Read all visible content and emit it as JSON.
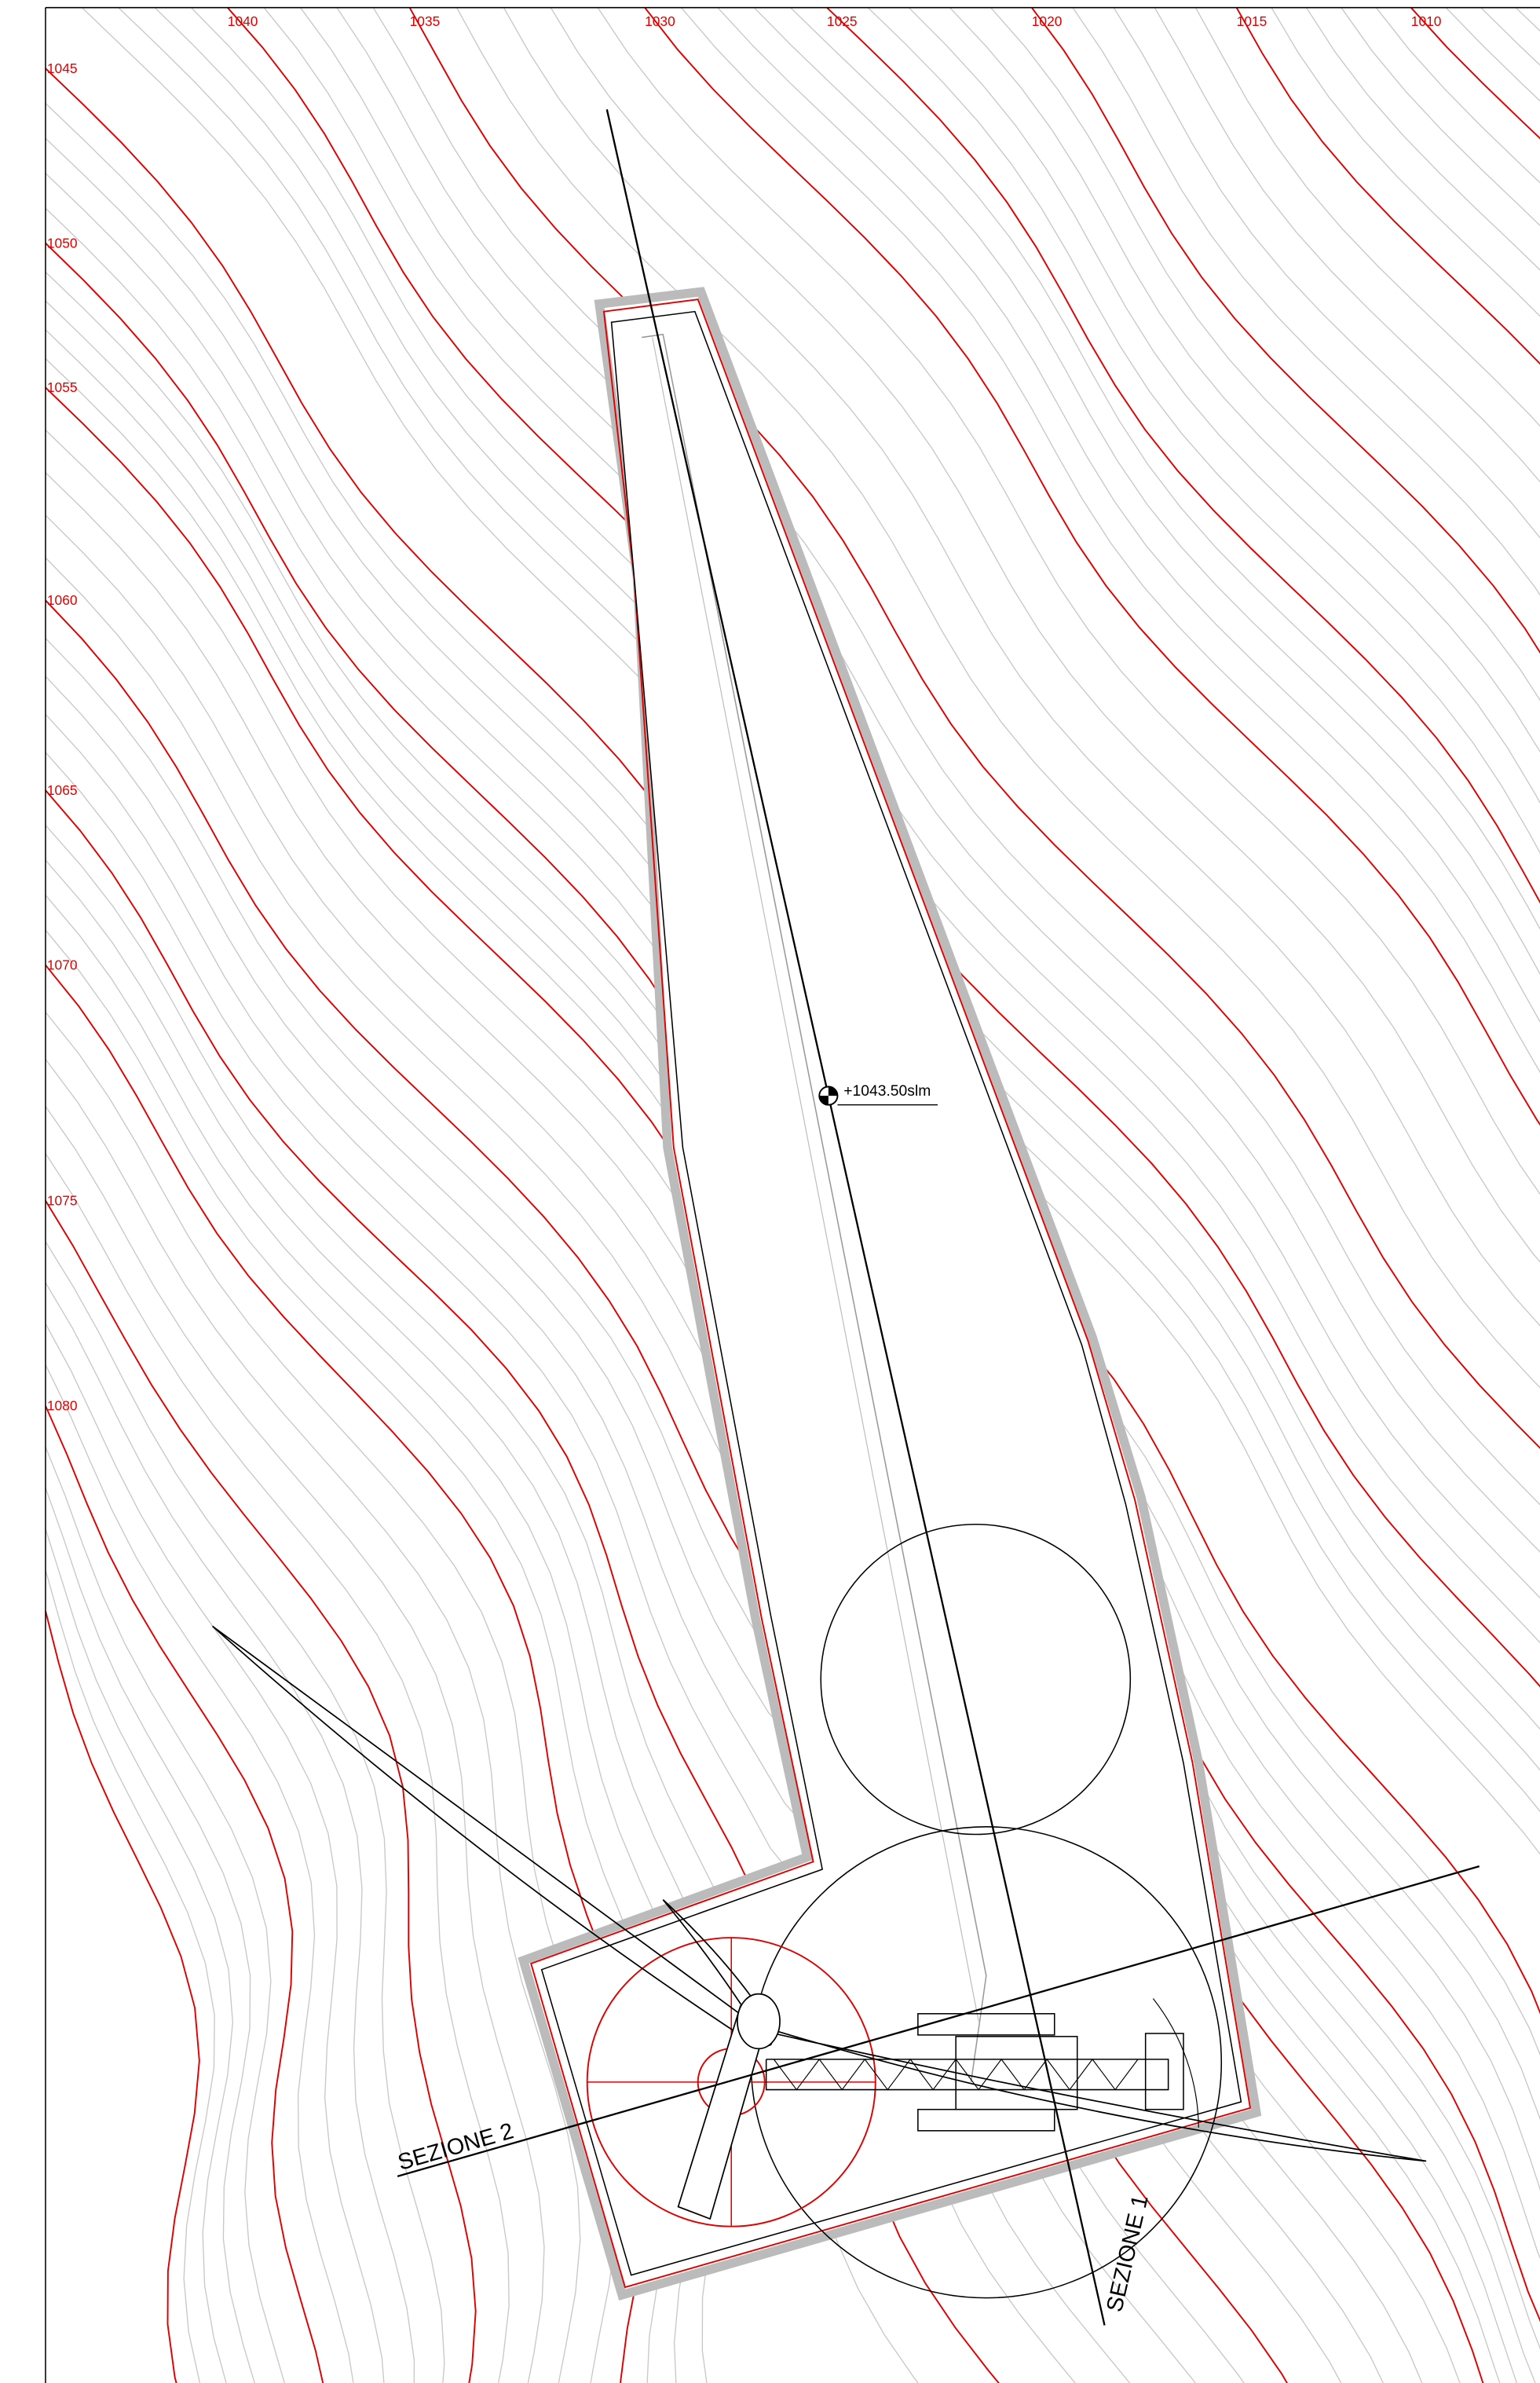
{
  "top_labels": [
    "1040",
    "1035",
    "1030",
    "1025",
    "1020",
    "1015",
    "1010"
  ],
  "left_labels": [
    "1045",
    "1050",
    "1055",
    "1060",
    "1065",
    "1070",
    "1075",
    "1080"
  ],
  "elevation_mark": "+1043.50slm",
  "sections": [
    "SEZIONE 2",
    "SEZIONE 1"
  ]
}
